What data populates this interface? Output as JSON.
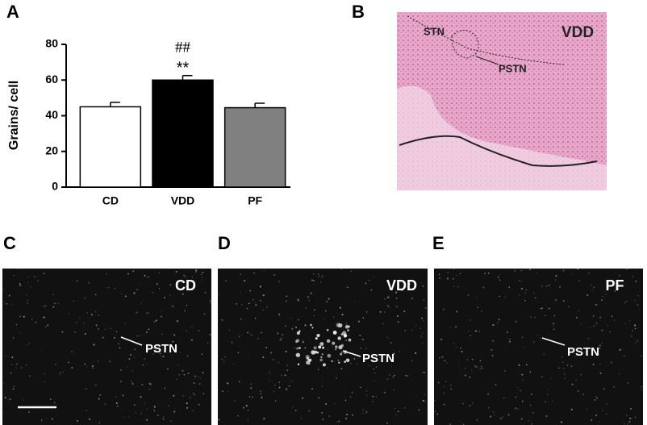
{
  "panels": [
    "A",
    "B",
    "C",
    "D",
    "E"
  ],
  "chart_data": {
    "type": "bar",
    "ylabel": "Grains/ cell",
    "categories": [
      "CD",
      "VDD",
      "PF"
    ],
    "values": [
      45,
      60,
      44.5
    ],
    "errors": [
      2.5,
      2.5,
      2.5
    ],
    "colors": [
      "#ffffff",
      "#000000",
      "#808080"
    ],
    "ylim": [
      0,
      80
    ],
    "yticks": [
      0,
      20,
      40,
      60,
      80
    ],
    "annotations": [
      "##",
      "**"
    ]
  },
  "histology": {
    "group": "VDD",
    "regions": [
      "STN",
      "PSTN"
    ]
  },
  "micrographs": [
    {
      "group": "CD",
      "region": "PSTN"
    },
    {
      "group": "VDD",
      "region": "PSTN"
    },
    {
      "group": "PF",
      "region": "PSTN"
    }
  ]
}
